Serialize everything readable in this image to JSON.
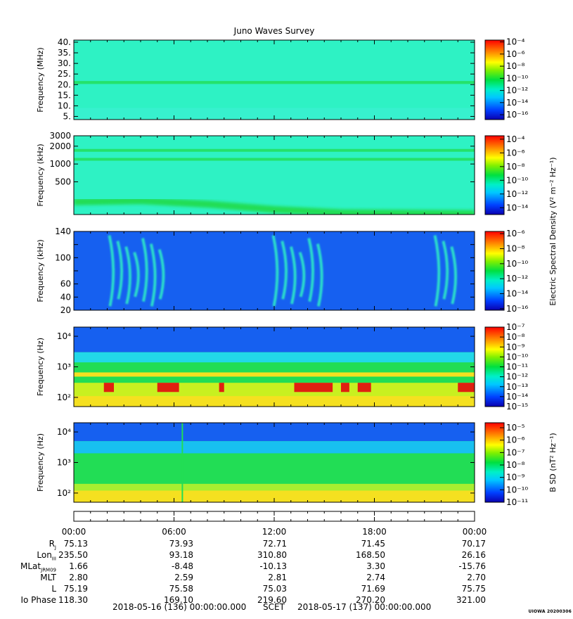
{
  "title": "Juno Waves Survey",
  "footer": {
    "start": "2018-05-16 (136) 00:00:00.000",
    "scet": "SCET",
    "end": "2018-05-17 (137) 00:00:00.000"
  },
  "stamp": "UIOWA 20200306",
  "colors": {
    "cyan_green": "#2ef2c4",
    "green": "#22dd55",
    "blue": "#1660f0",
    "yellow": "#f5e020",
    "red": "#e02010"
  },
  "chart_data": [
    {
      "type": "heatmap",
      "panel": "hfr-high",
      "ylabel": "Frequency (MHz)",
      "yscale": "linear",
      "ylim": [
        3.5,
        41
      ],
      "yticks": [
        5,
        10,
        15,
        20,
        25,
        30,
        35,
        40
      ],
      "ytick_labels": [
        "5.",
        "10.",
        "15.",
        "20.",
        "25.",
        "30.",
        "35.",
        "40."
      ],
      "xlim": [
        0,
        24
      ],
      "colorbar": {
        "exponents": [
          -4,
          -6,
          -8,
          -10,
          -12,
          -14,
          -16
        ],
        "range": [
          -16.8,
          -3.7
        ],
        "label": ""
      },
      "features": [
        {
          "kind": "band",
          "y": 21,
          "width": 1.4,
          "color": "green"
        }
      ],
      "background": "cyan_green"
    },
    {
      "type": "heatmap",
      "panel": "hfr-low",
      "ylabel": "Frequency (kHz)",
      "yscale": "log",
      "ylim": [
        140,
        3000
      ],
      "yticks": [
        500,
        1000,
        2000,
        3000
      ],
      "ytick_labels": [
        "500",
        "1000",
        "2000",
        "3000"
      ],
      "xlim": [
        0,
        24
      ],
      "colorbar": {
        "exponents": [
          -4,
          -6,
          -8,
          -10,
          -12,
          -14
        ],
        "range": [
          -15.0,
          -3.5
        ],
        "label": "Electric Spectral Density (V² m⁻² Hz⁻¹)"
      },
      "features": [
        {
          "kind": "band",
          "y": 1700,
          "color": "green"
        },
        {
          "kind": "band",
          "y": 1200,
          "color": "green"
        },
        {
          "kind": "curve",
          "points": [
            [
              0,
              230
            ],
            [
              4,
              240
            ],
            [
              8,
              210
            ],
            [
              12,
              170
            ],
            [
              16,
              150
            ],
            [
              24,
              145
            ]
          ],
          "color": "green"
        }
      ],
      "background": "cyan_green"
    },
    {
      "type": "heatmap",
      "panel": "lfr-high",
      "ylabel": "Frequency (kHz)",
      "yscale": "linear",
      "ylim": [
        20,
        140
      ],
      "yticks": [
        20,
        40,
        60,
        80,
        100,
        120,
        140
      ],
      "ytick_labels": [
        "20",
        "40",
        "60",
        "",
        "100",
        "",
        "140"
      ],
      "xlim": [
        0,
        24
      ],
      "colorbar": {
        "exponents": [
          -6,
          -8,
          -10,
          -12,
          -14,
          -16
        ],
        "range": [
          -16.2,
          -5.7
        ],
        "label": ""
      },
      "features": [
        {
          "kind": "bursts",
          "x_ranges": [
            [
              2.0,
              5.5
            ],
            [
              11.8,
              15.0
            ],
            [
              21.5,
              23.0
            ]
          ],
          "color": "cyan_green"
        }
      ],
      "background": "blue"
    },
    {
      "type": "heatmap",
      "panel": "lfr-low",
      "ylabel": "Frequency (Hz)",
      "yscale": "log",
      "ylim": [
        50,
        20000
      ],
      "yticks": [
        100,
        1000,
        10000
      ],
      "ytick_labels": [
        "10²",
        "10³",
        "10⁴"
      ],
      "xlim": [
        0,
        24
      ],
      "colorbar": {
        "exponents": [
          -7,
          -8,
          -9,
          -10,
          -11,
          -12,
          -13,
          -14,
          -15
        ],
        "range": [
          -15.0,
          -7.0
        ],
        "label": ""
      },
      "features": [
        {
          "kind": "line",
          "y": 560,
          "color": "yellow"
        },
        {
          "kind": "hot_patches",
          "x_ranges": [
            [
              1.8,
              2.4
            ],
            [
              5.0,
              6.3
            ],
            [
              8.7,
              9.0
            ],
            [
              13.2,
              15.5
            ],
            [
              16.0,
              16.5
            ],
            [
              17.0,
              17.8
            ],
            [
              23.0,
              24.0
            ]
          ],
          "color": "red"
        }
      ],
      "background": "green"
    },
    {
      "type": "heatmap",
      "panel": "magnetic",
      "ylabel": "Frequency (Hz)",
      "yscale": "log",
      "ylim": [
        50,
        20000
      ],
      "yticks": [
        100,
        1000,
        10000
      ],
      "ytick_labels": [
        "10²",
        "10³",
        "10⁴"
      ],
      "xlim": [
        0,
        24
      ],
      "colorbar": {
        "exponents": [
          -5,
          -6,
          -7,
          -8,
          -9,
          -10,
          -11
        ],
        "range": [
          -11.0,
          -4.6
        ],
        "label": "B SD (nT² Hz⁻¹)"
      },
      "features": [
        {
          "kind": "vertical_line",
          "x": 6.5,
          "color": "green"
        }
      ],
      "background": "green"
    }
  ],
  "time_axis": {
    "xlim": [
      0,
      24
    ],
    "major_hours": [
      0,
      6,
      12,
      18,
      24
    ],
    "labels": [
      "00:00",
      "06:00",
      "12:00",
      "18:00",
      "00:00"
    ]
  },
  "ephemeris": [
    {
      "label": "R",
      "sub": "J",
      "values": [
        "75.13",
        "73.93",
        "72.71",
        "71.45",
        "70.17"
      ]
    },
    {
      "label": "Lon",
      "sub": "III",
      "values": [
        "235.50",
        "93.18",
        "310.80",
        "168.50",
        "26.16"
      ]
    },
    {
      "label": "MLat",
      "sub": "JRM09",
      "values": [
        "1.66",
        "-8.48",
        "-10.13",
        "3.30",
        "-15.76"
      ]
    },
    {
      "label": "MLT",
      "sub": "",
      "values": [
        "2.80",
        "2.59",
        "2.81",
        "2.74",
        "2.70"
      ]
    },
    {
      "label": "L",
      "sub": "",
      "values": [
        "75.19",
        "75.58",
        "75.03",
        "71.69",
        "75.75"
      ]
    },
    {
      "label": "Io Phase",
      "sub": "",
      "values": [
        "118.30",
        "169.10",
        "219.60",
        "270.20",
        "321.00"
      ]
    }
  ]
}
